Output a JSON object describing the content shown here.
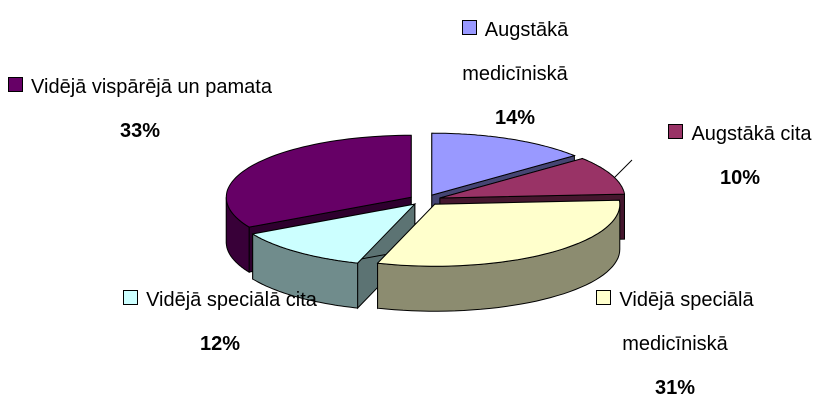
{
  "chart_data": {
    "type": "pie",
    "categories": [
      "Augstākā medicīniskā",
      "Augstākā cita",
      "Vidējā speciālā medicīniskā",
      "Vidējā speciālā cita",
      "Vidējā vispārējā un pamata"
    ],
    "values": [
      14,
      10,
      31,
      12,
      33
    ],
    "value_labels": [
      "14%",
      "10%",
      "31%",
      "12%",
      "33%"
    ],
    "colors": [
      "#9999ff",
      "#993366",
      "#ffffcc",
      "#ccffff",
      "#660066"
    ]
  }
}
